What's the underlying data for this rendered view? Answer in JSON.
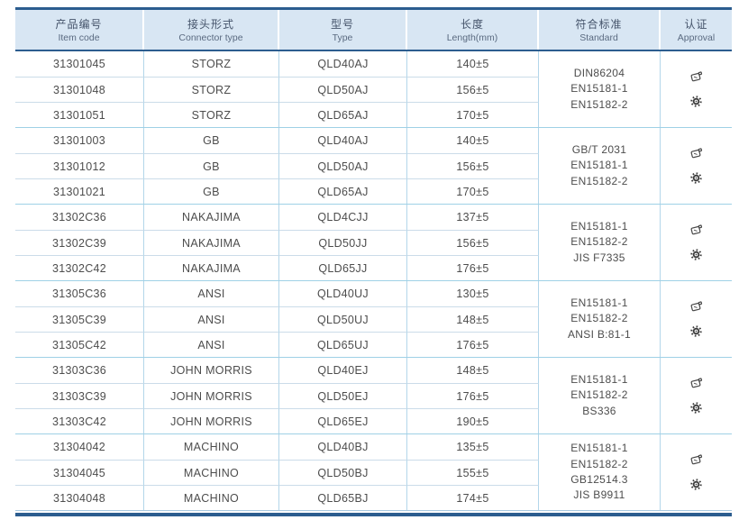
{
  "table": {
    "columns": [
      {
        "zh": "产品编号",
        "en": "Item code"
      },
      {
        "zh": "接头形式",
        "en": "Connector type"
      },
      {
        "zh": "型号",
        "en": "Type"
      },
      {
        "zh": "长度",
        "en": "Length(mm)"
      },
      {
        "zh": "符合标准",
        "en": "Standard"
      },
      {
        "zh": "认证",
        "en": "Approval"
      }
    ],
    "groups": [
      {
        "name": "storz",
        "rows": [
          {
            "item_code": "31301045",
            "connector_type": "STORZ",
            "type": "QLD40AJ",
            "length": "140±5"
          },
          {
            "item_code": "31301048",
            "connector_type": "STORZ",
            "type": "QLD50AJ",
            "length": "156±5"
          },
          {
            "item_code": "31301051",
            "connector_type": "STORZ",
            "type": "QLD65AJ",
            "length": "170±5"
          }
        ],
        "standards": [
          "DIN86204",
          "EN15181-1",
          "EN15182-2"
        ],
        "approval_icons": [
          "approval-stamp-icon",
          "approval-seal-icon"
        ]
      },
      {
        "name": "gb",
        "rows": [
          {
            "item_code": "31301003",
            "connector_type": "GB",
            "type": "QLD40AJ",
            "length": "140±5"
          },
          {
            "item_code": "31301012",
            "connector_type": "GB",
            "type": "QLD50AJ",
            "length": "156±5"
          },
          {
            "item_code": "31301021",
            "connector_type": "GB",
            "type": "QLD65AJ",
            "length": "170±5"
          }
        ],
        "standards": [
          "GB/T 2031",
          "EN15181-1",
          "EN15182-2"
        ],
        "approval_icons": [
          "approval-stamp-icon",
          "approval-seal-icon"
        ]
      },
      {
        "name": "nakajima",
        "rows": [
          {
            "item_code": "31302C36",
            "connector_type": "NAKAJIMA",
            "type": "QLD4CJJ",
            "length": "137±5"
          },
          {
            "item_code": "31302C39",
            "connector_type": "NAKAJIMA",
            "type": "QLD50JJ",
            "length": "156±5"
          },
          {
            "item_code": "31302C42",
            "connector_type": "NAKAJIMA",
            "type": "QLD65JJ",
            "length": "176±5"
          }
        ],
        "standards": [
          "EN15181-1",
          "EN15182-2",
          "JIS F7335"
        ],
        "approval_icons": [
          "approval-stamp-icon",
          "approval-seal-icon"
        ]
      },
      {
        "name": "ansi",
        "rows": [
          {
            "item_code": "31305C36",
            "connector_type": "ANSI",
            "type": "QLD40UJ",
            "length": "130±5"
          },
          {
            "item_code": "31305C39",
            "connector_type": "ANSI",
            "type": "QLD50UJ",
            "length": "148±5"
          },
          {
            "item_code": "31305C42",
            "connector_type": "ANSI",
            "type": "QLD65UJ",
            "length": "176±5"
          }
        ],
        "standards": [
          "EN15181-1",
          "EN15182-2",
          "ANSI B:81-1"
        ],
        "approval_icons": [
          "approval-stamp-icon",
          "approval-seal-icon"
        ]
      },
      {
        "name": "john-morris",
        "rows": [
          {
            "item_code": "31303C36",
            "connector_type": "JOHN MORRIS",
            "type": "QLD40EJ",
            "length": "148±5"
          },
          {
            "item_code": "31303C39",
            "connector_type": "JOHN MORRIS",
            "type": "QLD50EJ",
            "length": "176±5"
          },
          {
            "item_code": "31303C42",
            "connector_type": "JOHN MORRIS",
            "type": "QLD65EJ",
            "length": "190±5"
          }
        ],
        "standards": [
          "EN15181-1",
          "EN15182-2",
          "BS336"
        ],
        "approval_icons": [
          "approval-stamp-icon",
          "approval-seal-icon"
        ]
      },
      {
        "name": "machino",
        "rows": [
          {
            "item_code": "31304042",
            "connector_type": "MACHINO",
            "type": "QLD40BJ",
            "length": "135±5"
          },
          {
            "item_code": "31304045",
            "connector_type": "MACHINO",
            "type": "QLD50BJ",
            "length": "155±5"
          },
          {
            "item_code": "31304048",
            "connector_type": "MACHINO",
            "type": "QLD65BJ",
            "length": "174±5"
          }
        ],
        "standards": [
          "EN15181-1",
          "EN15182-2",
          "GB12514.3",
          "JIS B9911"
        ],
        "approval_icons": [
          "approval-stamp-icon",
          "approval-seal-icon"
        ]
      }
    ],
    "colors": {
      "header_bg": "#d8e6f3",
      "frame_border": "#2c5d8f",
      "column_line": "#b3d6ea",
      "row_line": "#cbdce9",
      "group_line": "#9fd1e6",
      "text": "#4d4d4d",
      "header_text": "#44536a"
    }
  }
}
